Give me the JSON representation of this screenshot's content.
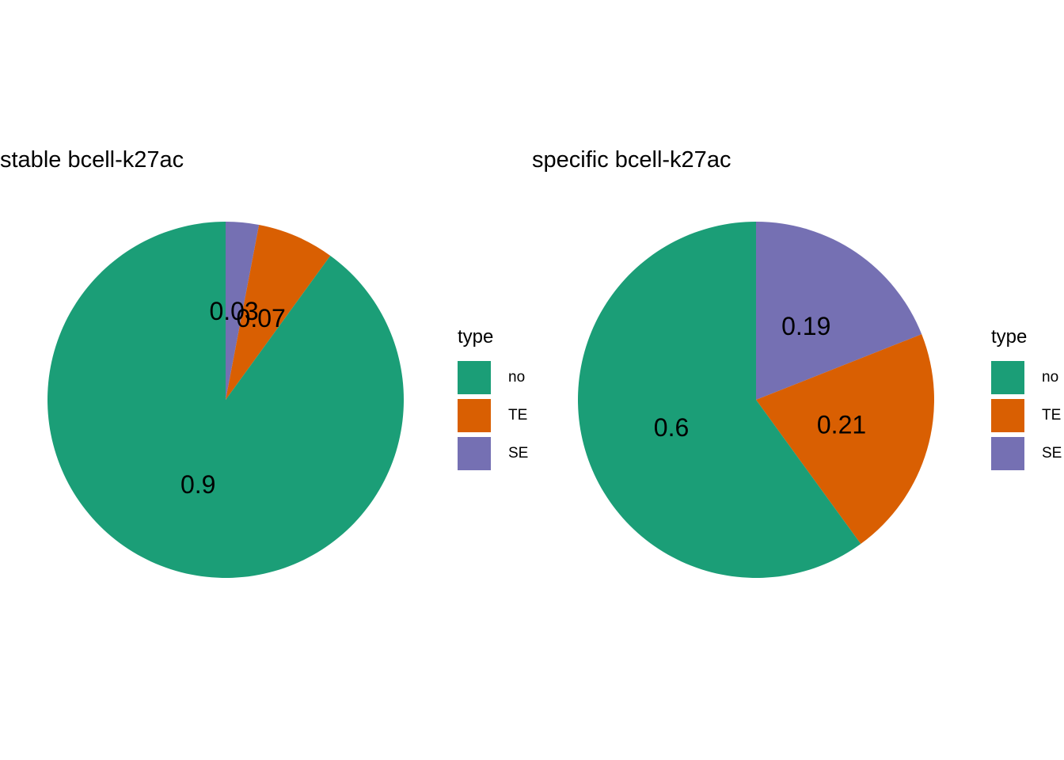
{
  "page": {
    "background": "#FFFFFF"
  },
  "chart_data": [
    {
      "type": "pie",
      "title": "stable bcell-k27ac",
      "categories": [
        "no",
        "TE",
        "SE"
      ],
      "values": [
        0.9,
        0.07,
        0.03
      ],
      "labels_shown": [
        "0.9",
        "0.07",
        "0.03"
      ],
      "colors": [
        "#1B9E77",
        "#D95F02",
        "#7570B3"
      ],
      "legend_title": "type",
      "legend_position": "right",
      "draw_order_clockwise_from_top": [
        "SE",
        "TE",
        "no"
      ],
      "start_angle": "12 o'clock",
      "label_radius_fraction": 0.5
    },
    {
      "type": "pie",
      "title": "specific bcell-k27ac",
      "categories": [
        "no",
        "TE",
        "SE"
      ],
      "values": [
        0.6,
        0.21,
        0.19
      ],
      "labels_shown": [
        "0.6",
        "0.21",
        "0.19"
      ],
      "colors": [
        "#1B9E77",
        "#D95F02",
        "#7570B3"
      ],
      "legend_title": "type",
      "legend_position": "right",
      "draw_order_clockwise_from_top": [
        "SE",
        "TE",
        "no"
      ],
      "start_angle": "12 o'clock",
      "label_radius_fraction": 0.5
    }
  ]
}
